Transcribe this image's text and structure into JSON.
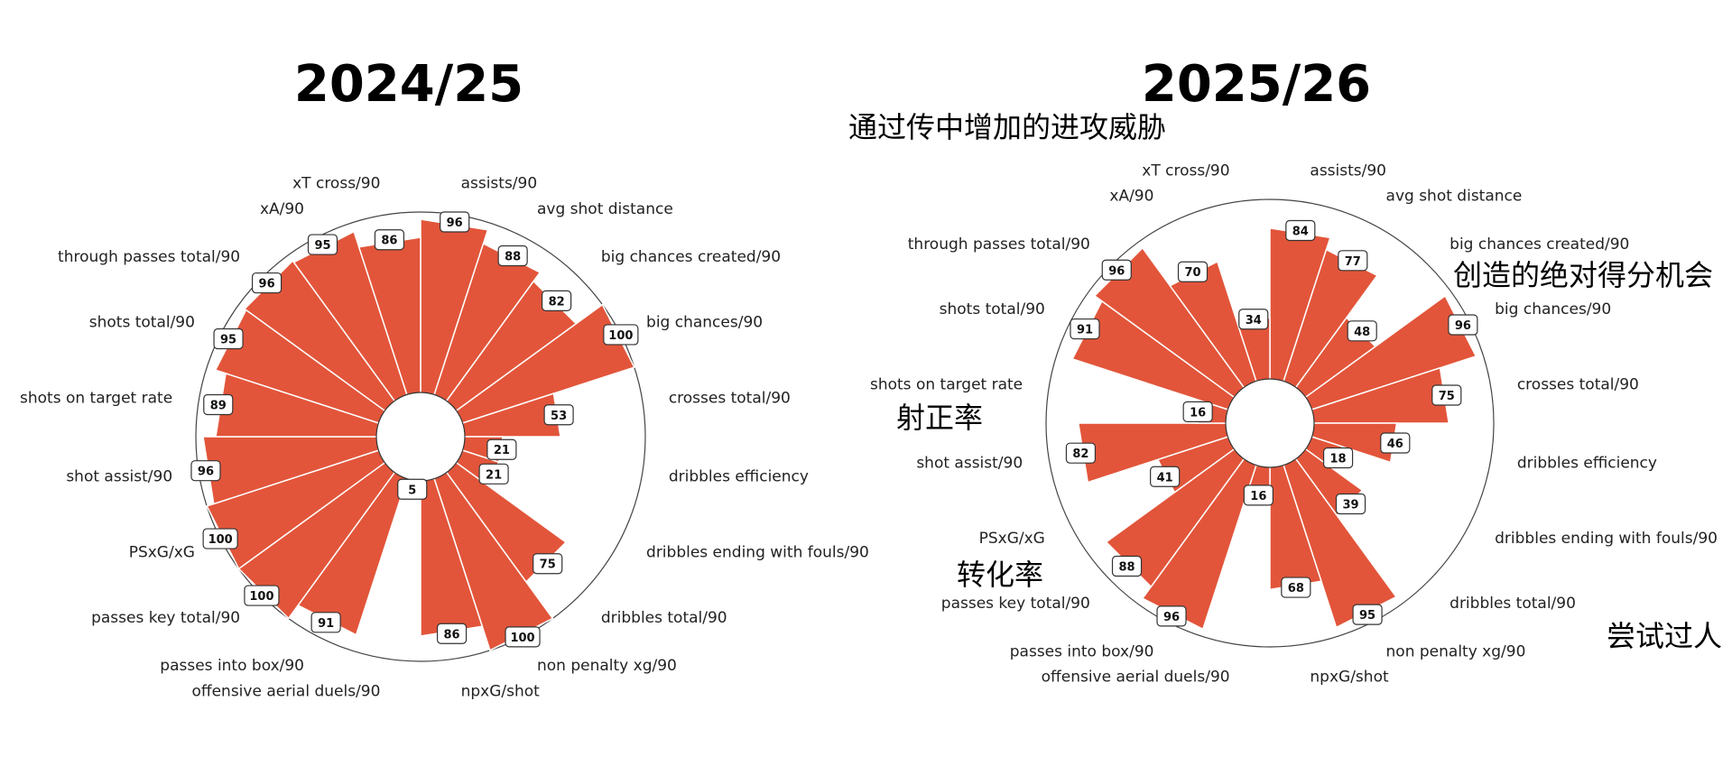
{
  "chart_data": [
    {
      "type": "polar-bar",
      "title": "2024/25",
      "categories": [
        "assists/90",
        "avg shot distance",
        "big chances created/90",
        "big chances/90",
        "crosses total/90",
        "dribbles efficiency",
        "dribbles ending with fouls/90",
        "dribbles total/90",
        "non penalty xg/90",
        "npxG/shot",
        "offensive aerial duels/90",
        "passes into box/90",
        "passes key total/90",
        "PSxG/xG",
        "shot assist/90",
        "shots on target rate",
        "shots total/90",
        "through passes total/90",
        "xA/90",
        "xT cross/90"
      ],
      "values": [
        96,
        88,
        82,
        100,
        53,
        21,
        21,
        75,
        100,
        86,
        5,
        91,
        100,
        100,
        96,
        89,
        95,
        96,
        95,
        86
      ],
      "rlim": [
        0,
        100
      ],
      "color": "#E2553A",
      "annotations": []
    },
    {
      "type": "polar-bar",
      "title": "2025/26",
      "categories": [
        "assists/90",
        "avg shot distance",
        "big chances created/90",
        "big chances/90",
        "crosses total/90",
        "dribbles efficiency",
        "dribbles ending with fouls/90",
        "dribbles total/90",
        "non penalty xg/90",
        "npxG/shot",
        "offensive aerial duels/90",
        "passes into box/90",
        "passes key total/90",
        "PSxG/xG",
        "shot assist/90",
        "shots on target rate",
        "shots total/90",
        "through passes total/90",
        "xA/90",
        "xT cross/90"
      ],
      "values": [
        84,
        77,
        48,
        96,
        75,
        46,
        18,
        39,
        95,
        68,
        16,
        96,
        88,
        41,
        82,
        16,
        91,
        96,
        70,
        34
      ],
      "rlim": [
        0,
        100
      ],
      "color": "#E2553A",
      "annotations": [
        "通过传中增加的进攻威胁",
        "创造的绝对得分机会",
        "射正率",
        "转化率",
        "尝试过人"
      ]
    }
  ]
}
